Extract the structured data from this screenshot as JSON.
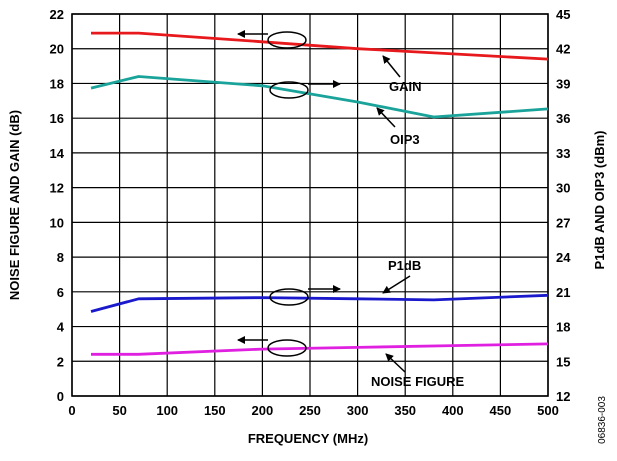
{
  "chart_data": {
    "type": "line",
    "xlabel": "FREQUENCY (MHz)",
    "ylabel_left": "NOISE FIGURE AND GAIN (dB)",
    "ylabel_right": "P1dB AND OIP3 (dBm)",
    "xlim": [
      0,
      500
    ],
    "ylim_left": [
      0,
      22
    ],
    "ylim_right": [
      12,
      45
    ],
    "x_ticks": [
      "0",
      "50",
      "100",
      "150",
      "200",
      "250",
      "300",
      "350",
      "400",
      "450",
      "500"
    ],
    "y_ticks_left": [
      "0",
      "2",
      "4",
      "6",
      "8",
      "10",
      "12",
      "14",
      "16",
      "18",
      "20",
      "22"
    ],
    "y_ticks_right": [
      "12",
      "15",
      "18",
      "21",
      "24",
      "27",
      "30",
      "33",
      "36",
      "39",
      "42",
      "45"
    ],
    "grid": true,
    "figure_id": "06836-003",
    "series": [
      {
        "name": "GAIN",
        "axis": "left",
        "color": "#e8191c",
        "x": [
          20,
          70,
          200,
          300,
          400,
          500
        ],
        "values": [
          20.9,
          20.9,
          20.4,
          20.0,
          19.7,
          19.4
        ]
      },
      {
        "name": "OIP3",
        "axis": "right",
        "color": "#1aa39a",
        "x": [
          20,
          70,
          200,
          300,
          380,
          500
        ],
        "values": [
          38.6,
          39.6,
          38.8,
          37.4,
          36.1,
          36.8
        ]
      },
      {
        "name": "P1dB",
        "axis": "right",
        "color": "#1a1acc",
        "x": [
          20,
          70,
          200,
          300,
          380,
          500
        ],
        "values": [
          19.3,
          20.4,
          20.5,
          20.4,
          20.3,
          20.7
        ]
      },
      {
        "name": "NOISE FIGURE",
        "axis": "left",
        "color": "#e020e0",
        "x": [
          20,
          70,
          200,
          300,
          400,
          500
        ],
        "values": [
          2.4,
          2.4,
          2.7,
          2.8,
          2.9,
          3.0
        ]
      }
    ],
    "annotations": [
      "GAIN",
      "OIP3",
      "P1dB",
      "NOISE FIGURE"
    ]
  }
}
